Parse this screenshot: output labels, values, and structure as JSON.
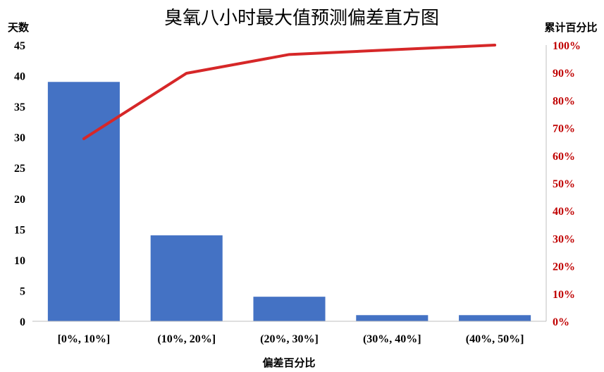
{
  "chart_data": {
    "type": "bar",
    "title": "臭氧八小时最大值预测偏差直方图",
    "xlabel": "偏差百分比",
    "ylabel": "天数",
    "y2label": "累计百分比",
    "categories": [
      "[0%, 10%]",
      "(10%, 20%]",
      "(20%, 30%]",
      "(30%, 40%]",
      "(40%, 50%]"
    ],
    "series": [
      {
        "type": "bar",
        "axis": "left",
        "values": [
          39,
          14,
          4,
          1,
          1
        ],
        "color": "#4472C4"
      },
      {
        "type": "line",
        "axis": "right",
        "values": [
          66.1,
          89.8,
          96.6,
          98.3,
          100
        ],
        "color": "#D62728"
      }
    ],
    "ylim": [
      0,
      45
    ],
    "yticks": [
      0,
      5,
      10,
      15,
      20,
      25,
      30,
      35,
      40,
      45
    ],
    "y2lim": [
      0,
      100
    ],
    "y2ticks": [
      "0%",
      "10%",
      "20%",
      "30%",
      "40%",
      "50%",
      "60%",
      "70%",
      "80%",
      "90%",
      "100%"
    ],
    "y2_color": "#C00000",
    "grid": false,
    "legend": "none"
  }
}
